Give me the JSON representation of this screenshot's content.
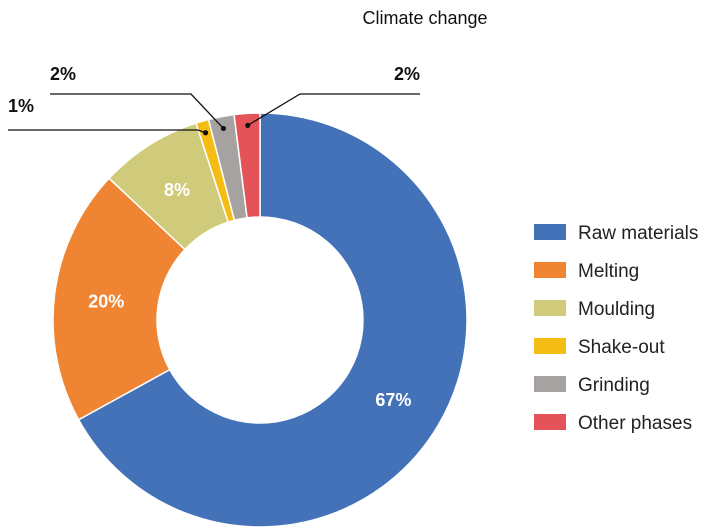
{
  "chart_data": {
    "type": "pie",
    "donut": true,
    "title": "Climate change",
    "categories": [
      "Raw materials",
      "Melting",
      "Moulding",
      "Shake-out",
      "Grinding",
      "Other phases"
    ],
    "values": [
      67,
      20,
      8,
      1,
      2,
      2
    ],
    "labels": [
      "67%",
      "20%",
      "8%",
      "1%",
      "2%",
      "2%"
    ],
    "colors": [
      "#4472b8",
      "#ef8533",
      "#cfcb7b",
      "#f5bd14",
      "#a7a2a2",
      "#e45358"
    ],
    "legend_position": "right"
  }
}
